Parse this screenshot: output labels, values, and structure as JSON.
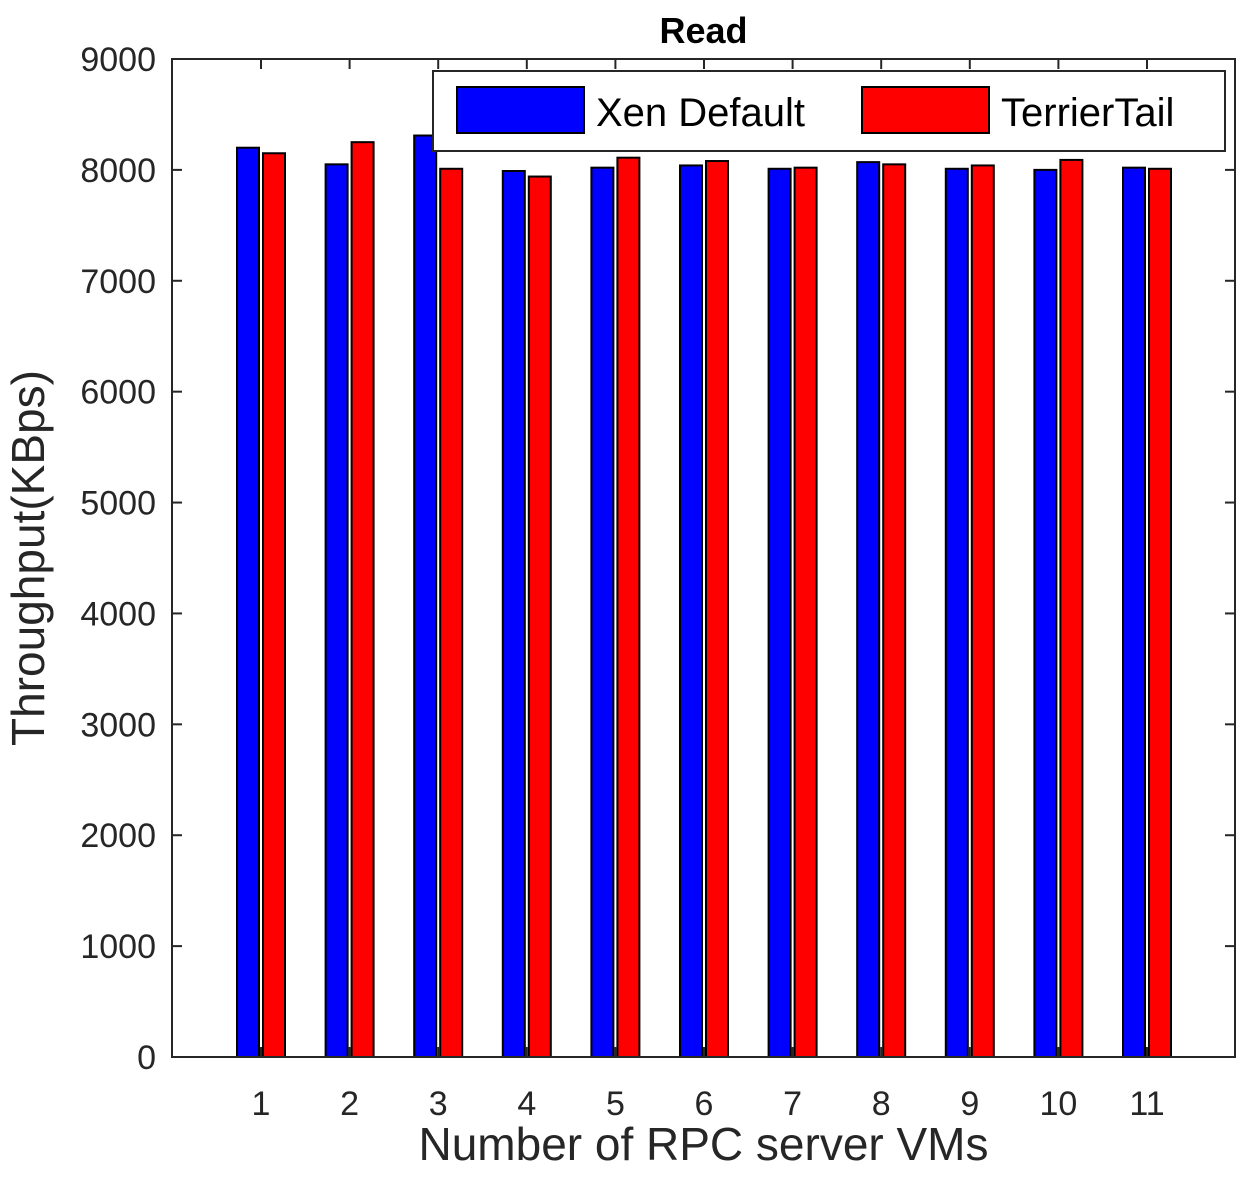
{
  "chart_data": {
    "type": "bar",
    "title": "Read",
    "xlabel": "Number of RPC server VMs",
    "ylabel": "Throughput(KBps)",
    "categories": [
      "1",
      "2",
      "3",
      "4",
      "5",
      "6",
      "7",
      "8",
      "9",
      "10",
      "11"
    ],
    "ylim": [
      0,
      9000
    ],
    "yticks": [
      0,
      1000,
      2000,
      3000,
      4000,
      5000,
      6000,
      7000,
      8000,
      9000
    ],
    "grid": false,
    "legend_position": "top-right",
    "series": [
      {
        "name": "Xen Default",
        "color": "#0000ff",
        "values": [
          8200,
          8050,
          8310,
          7990,
          8020,
          8040,
          8010,
          8070,
          8010,
          8000,
          8020
        ]
      },
      {
        "name": "TerrierTail",
        "color": "#ff0000",
        "values": [
          8150,
          8250,
          8010,
          7940,
          8110,
          8080,
          8020,
          8050,
          8040,
          8090,
          8010
        ]
      }
    ]
  }
}
